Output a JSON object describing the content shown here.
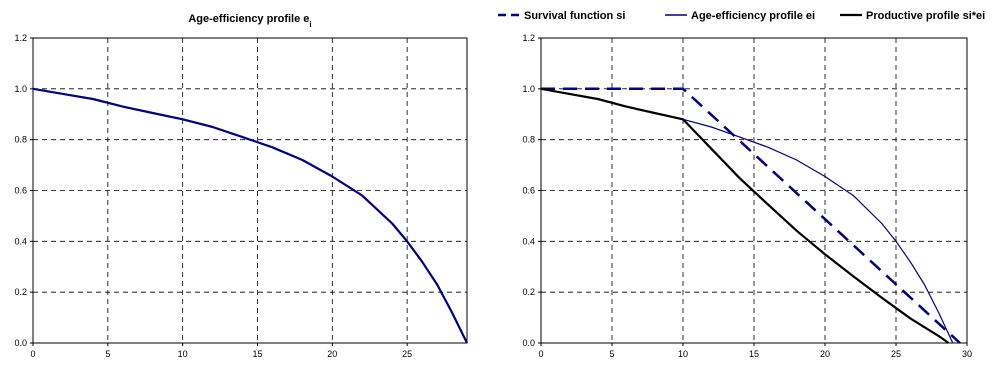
{
  "chart_data": [
    {
      "type": "line",
      "title": "Age-efficiency profile e",
      "title_subscript": "i",
      "xlabel": "",
      "ylabel": "",
      "xlim": [
        0,
        29
      ],
      "ylim": [
        0,
        1.2
      ],
      "x_ticks": [
        0,
        5,
        10,
        15,
        20,
        25
      ],
      "y_ticks": [
        "0.0",
        "0.2",
        "0.4",
        "0.6",
        "0.8",
        "1.0",
        "1.2"
      ],
      "grid": true,
      "legend": "none",
      "series": [
        {
          "name": "",
          "color": "#000080",
          "style": "solid",
          "width": 2.2,
          "x": [
            0,
            2,
            4,
            6,
            8,
            10,
            12,
            14,
            16,
            18,
            20,
            22,
            24,
            25,
            26,
            27,
            28,
            29
          ],
          "y": [
            1.0,
            0.98,
            0.96,
            0.93,
            0.905,
            0.88,
            0.85,
            0.81,
            0.77,
            0.72,
            0.655,
            0.58,
            0.47,
            0.4,
            0.32,
            0.23,
            0.12,
            0.0
          ]
        }
      ]
    },
    {
      "type": "line",
      "title": "",
      "xlabel": "",
      "ylabel": "",
      "xlim": [
        0,
        30
      ],
      "ylim": [
        0,
        1.2
      ],
      "x_ticks": [
        0,
        5,
        10,
        15,
        20,
        25,
        30
      ],
      "y_ticks": [
        "0.0",
        "0.2",
        "0.4",
        "0.6",
        "0.8",
        "1.0",
        "1.2"
      ],
      "grid": true,
      "legend": "top",
      "series": [
        {
          "name": "Survival function si",
          "color": "#000080",
          "style": "dashed",
          "width": 2.5,
          "x": [
            0,
            10,
            29.5
          ],
          "y": [
            1.0,
            1.0,
            0.0
          ]
        },
        {
          "name": "Age-efficiency profile ei",
          "color": "#000080",
          "style": "solid",
          "width": 1.2,
          "x": [
            0,
            2,
            4,
            6,
            8,
            10,
            12,
            14,
            16,
            18,
            20,
            22,
            24,
            25,
            26,
            27,
            28,
            29
          ],
          "y": [
            1.0,
            0.98,
            0.96,
            0.93,
            0.905,
            0.88,
            0.85,
            0.81,
            0.77,
            0.72,
            0.655,
            0.58,
            0.47,
            0.4,
            0.32,
            0.23,
            0.12,
            0.0
          ]
        },
        {
          "name": "Productive profile si*ei",
          "color": "#000000",
          "style": "solid",
          "width": 2.2,
          "x": [
            0,
            2,
            4,
            6,
            8,
            10,
            12,
            14,
            16,
            18,
            20,
            22,
            24,
            26,
            27,
            28,
            28.7
          ],
          "y": [
            1.0,
            0.98,
            0.96,
            0.93,
            0.905,
            0.88,
            0.764,
            0.648,
            0.544,
            0.442,
            0.349,
            0.262,
            0.178,
            0.097,
            0.062,
            0.028,
            0.0
          ]
        }
      ]
    }
  ]
}
